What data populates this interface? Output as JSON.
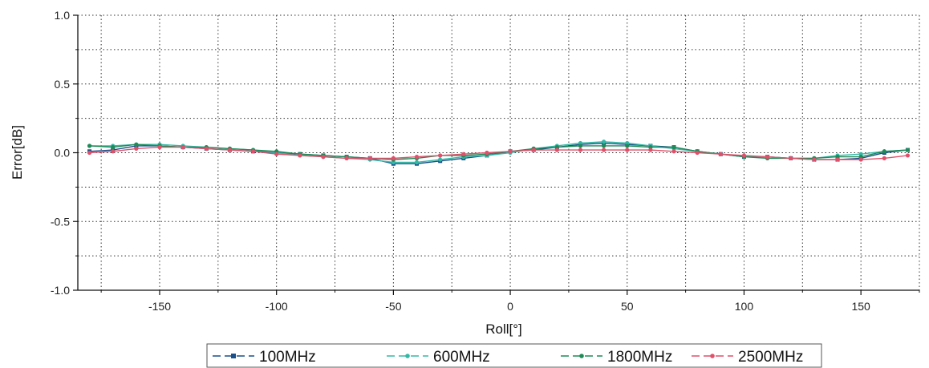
{
  "chart_data": {
    "type": "line",
    "xlabel": "Roll[°]",
    "ylabel": "Error[dB]",
    "xlim": [
      -185,
      175
    ],
    "ylim": [
      -1.0,
      1.0
    ],
    "x_ticks": [
      -150,
      -100,
      -50,
      0,
      50,
      100,
      150
    ],
    "y_ticks": [
      1.0,
      0.5,
      0.0,
      -0.5,
      -1.0
    ],
    "x_tick_labels": [
      "-150",
      "-100",
      "-50",
      "0",
      "50",
      "100",
      "150"
    ],
    "y_tick_labels": [
      "1.0",
      "0.5",
      "0.0",
      "-0.5",
      "-1.0"
    ],
    "grid": true,
    "legend_position": "bottom",
    "x": [
      -180,
      -170,
      -160,
      -150,
      -140,
      -130,
      -120,
      -110,
      -100,
      -90,
      -80,
      -70,
      -60,
      -50,
      -40,
      -30,
      -20,
      -10,
      0,
      10,
      20,
      30,
      40,
      50,
      60,
      70,
      80,
      90,
      100,
      110,
      120,
      130,
      140,
      150,
      160,
      170
    ],
    "series": [
      {
        "name": "100MHz",
        "color": "#1a4f8a",
        "marker": "square",
        "values": [
          0.01,
          0.02,
          0.05,
          0.05,
          0.04,
          0.03,
          0.02,
          0.01,
          0.0,
          -0.01,
          -0.02,
          -0.03,
          -0.04,
          -0.08,
          -0.08,
          -0.06,
          -0.04,
          -0.02,
          0.01,
          0.02,
          0.04,
          0.06,
          0.07,
          0.06,
          0.05,
          0.04,
          0.01,
          -0.01,
          -0.03,
          -0.03,
          -0.04,
          -0.05,
          -0.05,
          -0.04,
          0.0,
          0.02
        ]
      },
      {
        "name": "600MHz",
        "color": "#33b8a6",
        "marker": "circle",
        "values": [
          0.05,
          0.05,
          0.06,
          0.06,
          0.05,
          0.04,
          0.03,
          0.02,
          0.0,
          -0.02,
          -0.03,
          -0.04,
          -0.05,
          -0.07,
          -0.07,
          -0.05,
          -0.03,
          -0.02,
          0.0,
          0.03,
          0.05,
          0.07,
          0.08,
          0.07,
          0.05,
          0.03,
          0.01,
          -0.01,
          -0.03,
          -0.03,
          -0.04,
          -0.04,
          -0.02,
          -0.01,
          0.01,
          0.02
        ]
      },
      {
        "name": "1800MHz",
        "color": "#1f8a57",
        "marker": "circle",
        "values": [
          0.05,
          0.04,
          0.06,
          0.05,
          0.04,
          0.04,
          0.03,
          0.02,
          0.01,
          -0.01,
          -0.02,
          -0.03,
          -0.04,
          -0.05,
          -0.04,
          -0.02,
          -0.02,
          -0.01,
          0.01,
          0.03,
          0.04,
          0.05,
          0.05,
          0.05,
          0.04,
          0.04,
          0.01,
          -0.01,
          -0.03,
          -0.04,
          -0.04,
          -0.04,
          -0.03,
          -0.03,
          0.01,
          0.02
        ]
      },
      {
        "name": "2500MHz",
        "color": "#e0506a",
        "marker": "circle",
        "values": [
          0.0,
          0.01,
          0.03,
          0.04,
          0.04,
          0.03,
          0.02,
          0.01,
          -0.01,
          -0.02,
          -0.03,
          -0.04,
          -0.04,
          -0.04,
          -0.03,
          -0.02,
          -0.01,
          0.0,
          0.01,
          0.02,
          0.02,
          0.02,
          0.02,
          0.02,
          0.02,
          0.01,
          0.0,
          -0.01,
          -0.02,
          -0.03,
          -0.04,
          -0.05,
          -0.05,
          -0.05,
          -0.04,
          -0.02
        ]
      }
    ]
  }
}
